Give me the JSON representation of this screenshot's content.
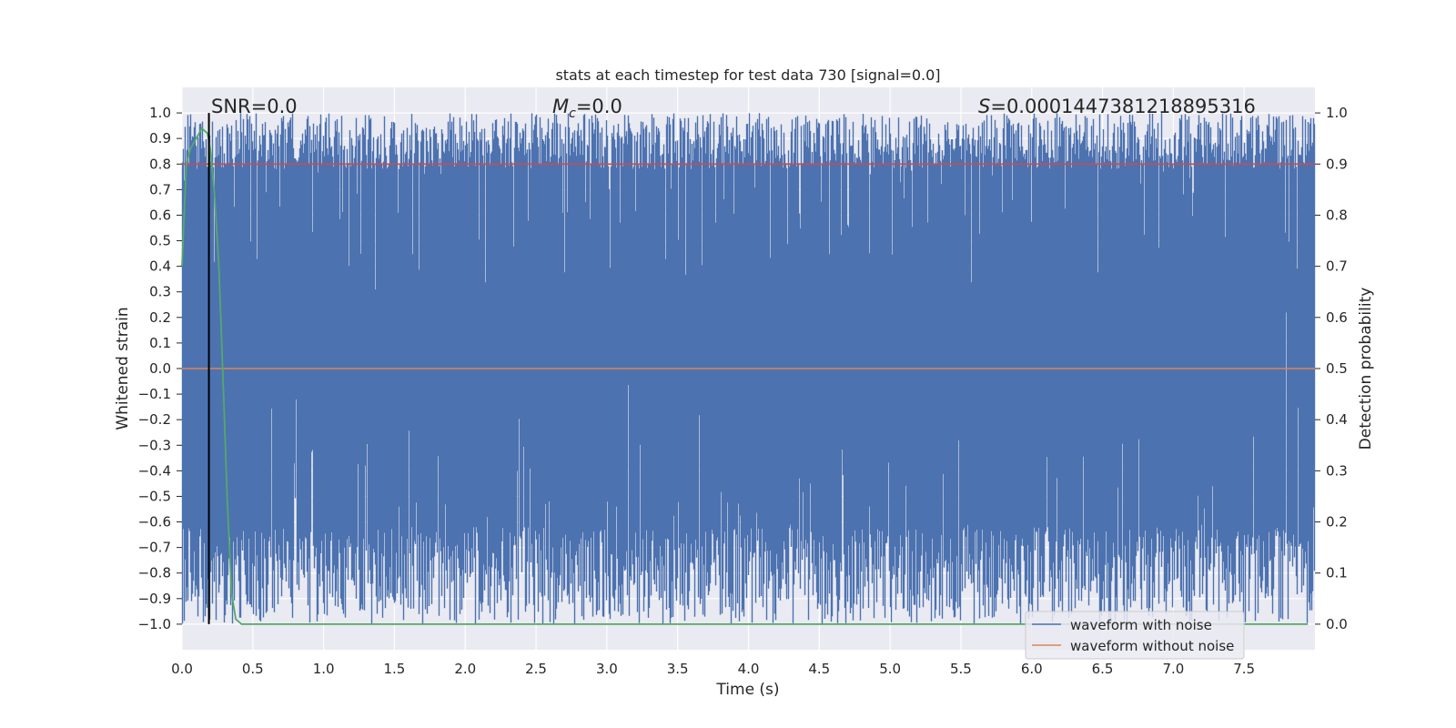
{
  "chart_data": {
    "type": "line",
    "title": "stats at each timestep for test data 730 [signal=0.0]",
    "xlabel": "Time (s)",
    "ylabel": "Whitened strain",
    "y2label": "Detection probability",
    "xlim": [
      0.0,
      8.0
    ],
    "ylim": [
      -1.1,
      1.1
    ],
    "y2lim": [
      -0.05,
      1.05
    ],
    "xticks": [
      0.0,
      0.5,
      1.0,
      1.5,
      2.0,
      2.5,
      3.0,
      3.5,
      4.0,
      4.5,
      5.0,
      5.5,
      6.0,
      6.5,
      7.0,
      7.5
    ],
    "xtick_labels": [
      "0.0",
      "0.5",
      "1.0",
      "1.5",
      "2.0",
      "2.5",
      "3.0",
      "3.5",
      "4.0",
      "4.5",
      "5.0",
      "5.5",
      "6.0",
      "6.5",
      "7.0",
      "7.5"
    ],
    "yticks": [
      1.0,
      0.9,
      0.8,
      0.7,
      0.6,
      0.5,
      0.4,
      0.3,
      0.2,
      0.1,
      0.0,
      -0.1,
      -0.2,
      -0.3,
      -0.4,
      -0.5,
      -0.6,
      -0.7,
      -0.8,
      -0.9,
      -1.0
    ],
    "ytick_labels": [
      "1.0",
      "0.9",
      "0.8",
      "0.7",
      "0.6",
      "0.5",
      "0.4",
      "0.3",
      "0.2",
      "0.1",
      "0.0",
      "−0.1",
      "−0.2",
      "−0.3",
      "−0.4",
      "−0.5",
      "−0.6",
      "−0.7",
      "−0.8",
      "−0.9",
      "−1.0"
    ],
    "y2ticks": [
      1.0,
      0.9,
      0.8,
      0.7,
      0.6,
      0.5,
      0.4,
      0.3,
      0.2,
      0.1,
      0.0
    ],
    "y2tick_labels": [
      "1.0",
      "0.9",
      "0.8",
      "0.7",
      "0.6",
      "0.5",
      "0.4",
      "0.3",
      "0.2",
      "0.1",
      "0.0"
    ],
    "annotations": {
      "snr": "SNR=0.0",
      "mc_symbol": "M",
      "mc_sub": "c",
      "mc_value": "=0.0",
      "s_symbol": "S",
      "s_value": "=0.0001447381218895316"
    },
    "series": [
      {
        "name": "waveform with noise",
        "color": "#4c72b0",
        "axis": "left",
        "description_range": [
          -1.0,
          1.0
        ]
      },
      {
        "name": "waveform without noise",
        "color": "#dd8452",
        "axis": "left",
        "x": [
          0.0,
          8.0
        ],
        "y": [
          0.0,
          0.0
        ]
      },
      {
        "name": "detection probability",
        "color": "#55a868",
        "axis": "right",
        "x": [
          0.0,
          0.03,
          0.06,
          0.1,
          0.14,
          0.18,
          0.2,
          0.23,
          0.26,
          0.29,
          0.32,
          0.35,
          0.38,
          0.42,
          0.5,
          1.0,
          2.0,
          4.0,
          6.0,
          7.95
        ],
        "y": [
          0.7,
          0.9,
          0.93,
          0.95,
          0.97,
          0.96,
          0.93,
          0.84,
          0.7,
          0.48,
          0.24,
          0.06,
          0.01,
          0.0,
          0.0,
          0.0,
          0.0,
          0.0,
          0.0,
          0.0
        ]
      }
    ],
    "threshold": {
      "value": 0.9,
      "axis": "right",
      "color": "#c44e52"
    },
    "marker_line": {
      "x": 0.19,
      "color": "#000000"
    },
    "legend": {
      "position": "lower-right",
      "entries": [
        "waveform with noise",
        "waveform without noise"
      ]
    },
    "colors": {
      "axes_bg": "#eaeaf2",
      "grid": "#ffffff",
      "noise": "#4c72b0",
      "clean": "#dd8452",
      "prob": "#55a868",
      "threshold": "#c44e52"
    }
  }
}
